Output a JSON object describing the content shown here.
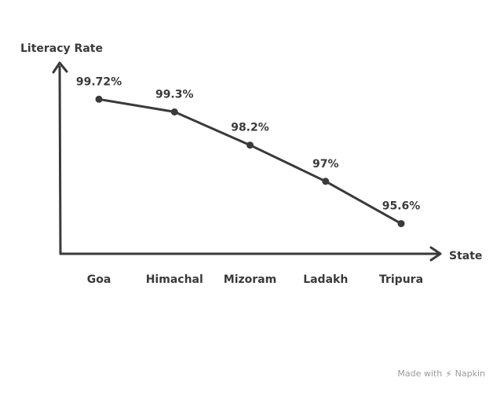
{
  "chart_data": {
    "type": "line",
    "xlabel": "State",
    "ylabel": "Literacy Rate",
    "categories": [
      "Goa",
      "Himachal",
      "Mizoram",
      "Ladakh",
      "Tripura"
    ],
    "series": [
      {
        "values": [
          99.72,
          99.3,
          98.2,
          97,
          95.6
        ],
        "labels": [
          "99.72%",
          "99.3%",
          "98.2%",
          "97%",
          "95.6%"
        ]
      }
    ],
    "ylim": [
      94.6,
      100.6
    ],
    "grid": false,
    "legend": "none",
    "colors": {
      "line": "#3a3a3a",
      "text": "#3a3a3a"
    }
  },
  "watermark": {
    "made_with": "Made with",
    "brand": "Napkin",
    "icon": "napkin-logo-icon"
  }
}
